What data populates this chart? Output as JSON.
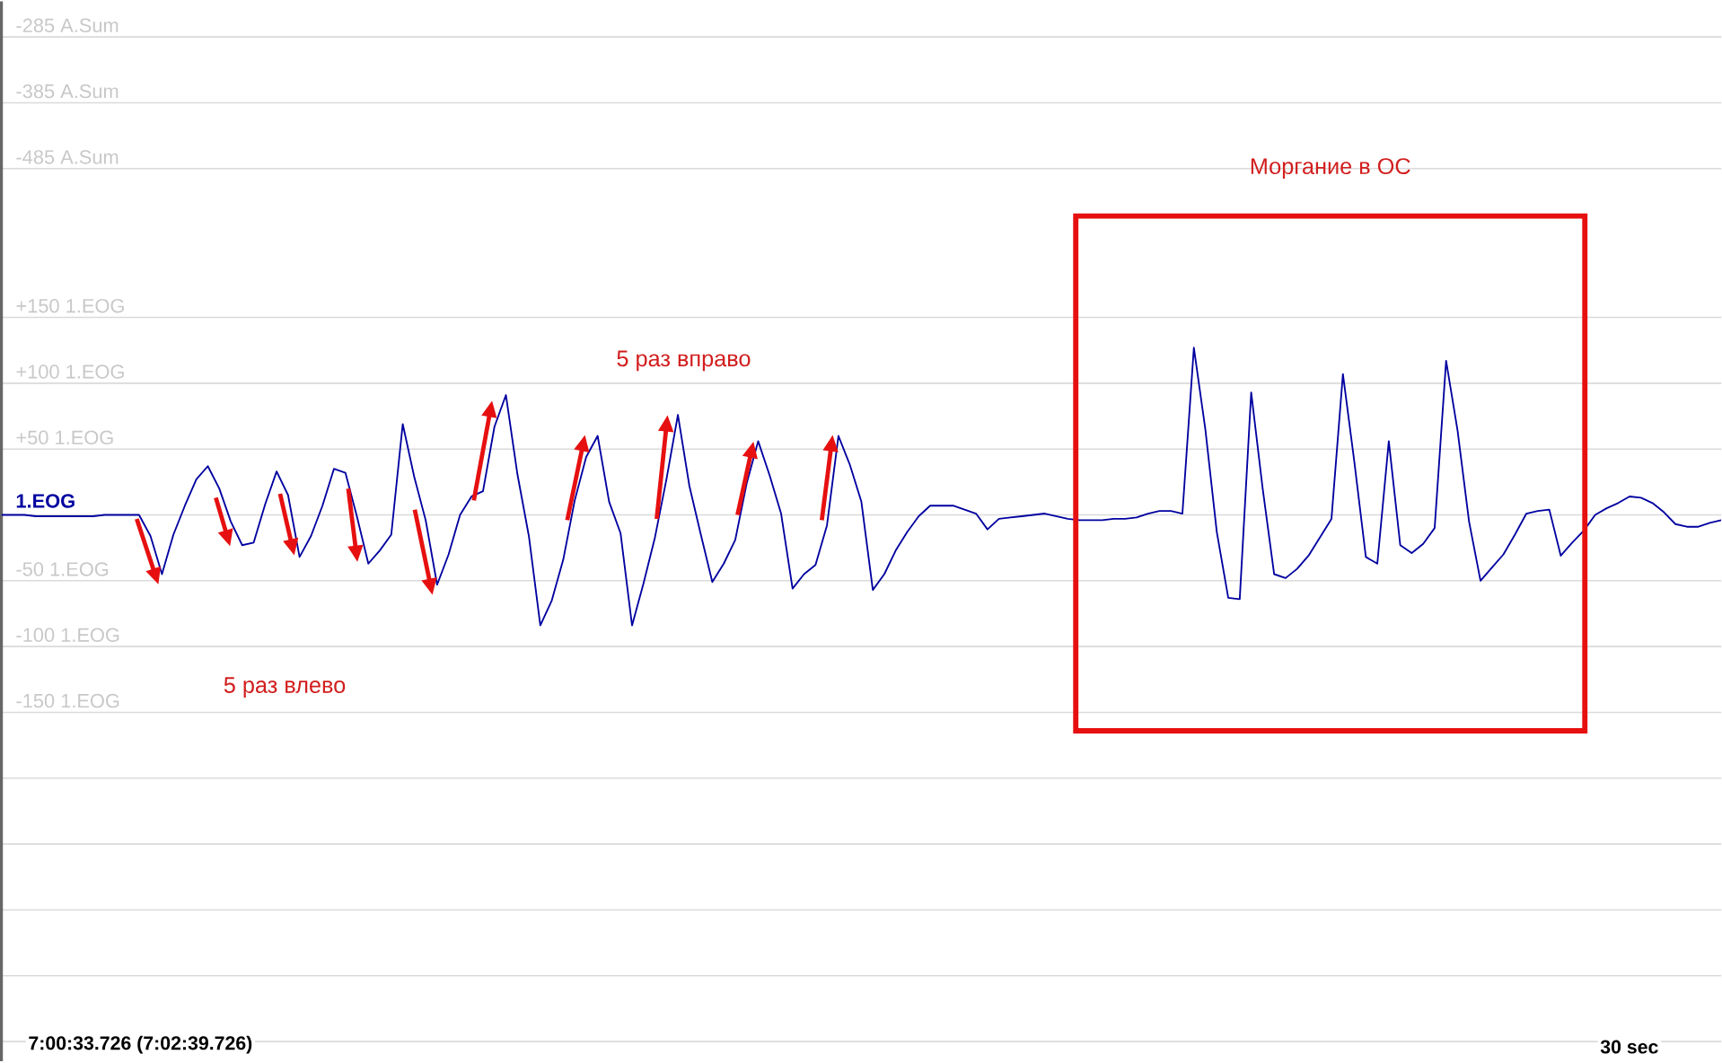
{
  "chart_data": {
    "type": "line",
    "ylim": [
      -415,
      390
    ],
    "y2lim": [
      -1841,
      -231
    ],
    "categories": [
      null,
      null,
      null,
      null,
      null,
      null,
      null,
      null,
      null,
      null,
      null,
      null,
      null,
      null,
      null,
      null,
      null,
      null,
      null,
      null,
      null,
      null,
      null,
      null,
      null,
      null,
      null,
      null,
      null,
      null,
      null,
      null,
      null,
      null,
      null,
      null,
      null,
      null,
      null,
      null,
      null,
      null,
      null,
      null,
      null,
      null,
      null,
      null,
      null,
      null,
      null,
      null,
      null,
      null,
      null,
      null,
      null,
      null,
      null,
      null,
      null,
      null,
      null,
      null,
      null,
      null,
      null,
      null,
      null,
      null,
      null,
      null,
      null,
      null,
      null,
      null,
      null,
      null,
      null,
      null,
      null,
      null,
      null,
      null,
      null,
      null,
      null,
      null,
      null,
      null,
      null,
      null,
      null,
      null,
      null,
      null,
      null,
      null,
      null,
      null,
      null,
      null,
      null,
      null,
      null,
      null,
      null,
      null,
      null,
      null,
      null,
      null,
      null,
      null,
      null,
      null,
      null,
      null,
      null,
      null,
      null,
      null,
      null,
      null,
      null,
      null,
      null,
      null,
      null,
      null,
      null,
      null,
      null,
      null,
      null,
      null,
      null,
      null,
      null,
      null,
      null,
      null,
      null,
      null,
      null,
      null,
      null,
      null,
      null,
      null,
      null
    ],
    "yticks": [
      {
        "value": 150,
        "label": "+150"
      },
      {
        "value": 100,
        "label": "+100"
      },
      {
        "value": 50,
        "label": "+50"
      },
      {
        "value": 0,
        "label": null
      },
      -50,
      -100,
      -150,
      {
        "value": -200,
        "label": null
      },
      {
        "value": -250,
        "label": null
      },
      {
        "value": -300,
        "label": null
      },
      {
        "value": -350,
        "label": null
      },
      {
        "value": -400,
        "label": null
      }
    ],
    "y2ticks": [
      {
        "value": -285,
        "label": "-285 A.Sum"
      },
      {
        "value": -385,
        "label": "-385 A.Sum"
      },
      {
        "value": -485,
        "label": "-485 A.Sum"
      }
    ],
    "grid": true,
    "marker": "none",
    "line_style": "solid",
    "series": [
      {
        "name": "1.EOG",
        "color": "#0000a0",
        "values": [
          0,
          0,
          0,
          -1,
          -1,
          -1,
          -1,
          -1,
          -1,
          0,
          0,
          0,
          0,
          -16,
          -45,
          -15,
          7,
          27,
          37,
          20,
          -5,
          -23,
          -21,
          8,
          33,
          15,
          -32,
          -16,
          7,
          35,
          32,
          -1,
          -37,
          -27,
          -15,
          69,
          29,
          -4,
          -53,
          -30,
          0,
          14,
          18,
          67,
          91,
          31,
          -16,
          -84,
          -65,
          -34,
          11,
          44,
          60,
          10,
          -14,
          -84,
          -52,
          -17,
          27,
          76,
          22,
          -15,
          -51,
          -37,
          -19,
          24,
          56,
          30,
          1,
          -56,
          -45,
          -38,
          -8,
          60,
          38,
          10,
          -57,
          -45,
          -27,
          -13,
          -1,
          7,
          7,
          7,
          4,
          1,
          -11,
          -3,
          -2,
          -1,
          0,
          1,
          -1,
          -3,
          -4,
          -4,
          -4,
          -3,
          -3,
          -2,
          1,
          3,
          3,
          1,
          127,
          65,
          -13,
          -63,
          -64,
          93,
          20,
          -45,
          -48,
          -41,
          -31,
          -17,
          -3,
          107,
          40,
          -32,
          -37,
          56,
          -23,
          -29,
          -22,
          -10,
          117,
          64,
          -5,
          -50,
          -40,
          -30,
          -15,
          1,
          3,
          4,
          -31,
          -21,
          -12,
          0,
          5,
          9,
          14,
          13,
          9,
          2,
          -7,
          -9,
          -9,
          -6,
          -4
        ]
      }
    ],
    "annotations": [
      "5 раз влево",
      "5 раз вправо",
      "Моргание в ОС",
      "7:00:33.726 (7:02:39.726)",
      "30 sec"
    ]
  }
}
